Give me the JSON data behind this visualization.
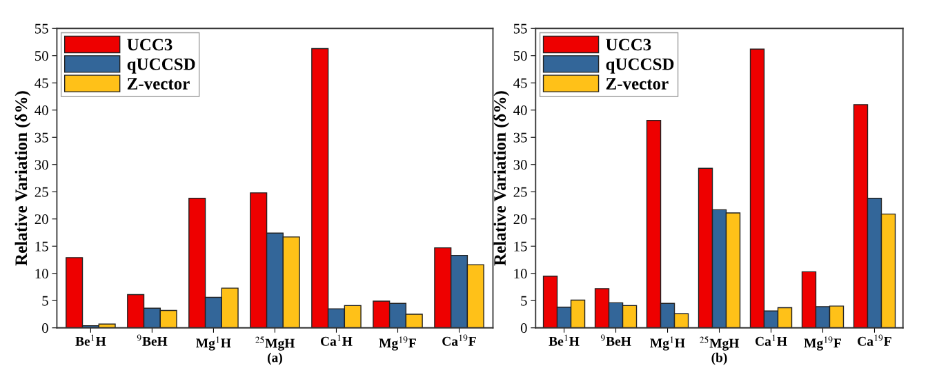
{
  "chart_data": [
    {
      "type": "bar",
      "xlabel": "(a)",
      "ylabel": "Relative Variation (δ%)",
      "categories": [
        "Be$^{1}$H",
        "$^{9}$BeH",
        "Mg$^{1}$H",
        "$^{25}$MgH",
        "Ca$^{1}$H",
        "Mg$^{19}$F",
        "Ca$^{19}$F"
      ],
      "series": [
        {
          "name": "UCC3",
          "color": "#ee0000",
          "values": [
            12.9,
            6.1,
            23.8,
            24.8,
            51.3,
            4.9,
            14.7
          ]
        },
        {
          "name": "qUCCSD",
          "color": "#336699",
          "values": [
            0.4,
            3.6,
            5.6,
            17.4,
            3.5,
            4.5,
            13.3
          ]
        },
        {
          "name": "Z-vector",
          "color": "#ffc118",
          "values": [
            0.7,
            3.2,
            7.3,
            16.7,
            4.1,
            2.5,
            11.6
          ]
        }
      ],
      "ylim": [
        0,
        55
      ],
      "yticks": [
        0,
        5,
        10,
        15,
        20,
        25,
        30,
        35,
        40,
        45,
        50,
        55
      ],
      "legend": "top left",
      "grid": false
    },
    {
      "type": "bar",
      "xlabel": "(b)",
      "ylabel": "Relative Variation (δ%)",
      "categories": [
        "Be$^{1}$H",
        "$^{9}$BeH",
        "Mg$^{1}$H",
        "$^{25}$MgH",
        "Ca$^{1}$H",
        "Mg$^{19}$F",
        "Ca$^{19}$F"
      ],
      "series": [
        {
          "name": "UCC3",
          "color": "#ee0000",
          "values": [
            9.5,
            7.2,
            38.1,
            29.3,
            51.2,
            10.3,
            41.0
          ]
        },
        {
          "name": "qUCCSD",
          "color": "#336699",
          "values": [
            3.8,
            4.6,
            4.5,
            21.7,
            3.1,
            3.9,
            23.8
          ]
        },
        {
          "name": "Z-vector",
          "color": "#ffc118",
          "values": [
            5.1,
            4.1,
            2.6,
            21.1,
            3.7,
            4.0,
            20.9
          ]
        }
      ],
      "ylim": [
        0,
        55
      ],
      "yticks": [
        0,
        5,
        10,
        15,
        20,
        25,
        30,
        35,
        40,
        45,
        50,
        55
      ],
      "legend": "top left",
      "grid": false
    }
  ]
}
